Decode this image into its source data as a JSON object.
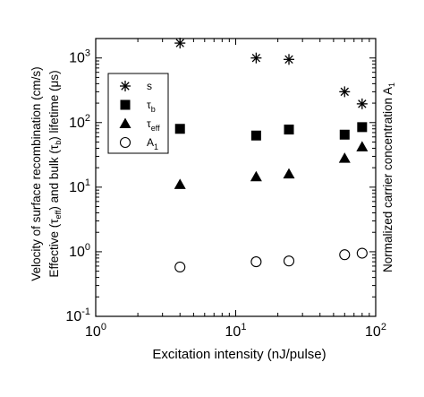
{
  "chart_data": {
    "type": "scatter",
    "xscale": "log",
    "yscale": "log",
    "xlim": [
      1,
      100
    ],
    "ylim": [
      0.1,
      2000
    ],
    "x_ticks": [
      {
        "value": 1,
        "base": "10",
        "exp": "0"
      },
      {
        "value": 10,
        "base": "10",
        "exp": "1"
      },
      {
        "value": 100,
        "base": "10",
        "exp": "2"
      }
    ],
    "y_ticks": [
      {
        "value": 0.1,
        "base": "10",
        "exp": "-1"
      },
      {
        "value": 1,
        "base": "10",
        "exp": "0"
      },
      {
        "value": 10,
        "base": "10",
        "exp": "1"
      },
      {
        "value": 100,
        "base": "10",
        "exp": "2"
      },
      {
        "value": 1000,
        "base": "10",
        "exp": "3"
      }
    ],
    "xlabel": "Excitation intensity   (nJ/pulse)",
    "ylabel_left": {
      "line1": "Velocity of surface recombination  (cm/s)",
      "line2_pre": "Effective  (τ",
      "line2_sub1": "eff",
      "line2_mid": ")  and  bulk  (τ",
      "line2_sub2": "b",
      "line2_post": ")  lifetime   (μs)"
    },
    "ylabel_right": {
      "text": "Normalized carrier concentration A",
      "sub": "1"
    },
    "grid": false,
    "legend_position": "upper-left",
    "series": [
      {
        "key": "s",
        "label": "s",
        "label_sub": "",
        "marker": "asterisk",
        "x": [
          4,
          14,
          24,
          60,
          80
        ],
        "y": [
          1700,
          1000,
          950,
          300,
          195
        ]
      },
      {
        "key": "tau_b",
        "label": "τ",
        "label_sub": "b",
        "marker": "square",
        "x": [
          4,
          14,
          24,
          60,
          80
        ],
        "y": [
          80,
          63,
          78,
          65,
          85
        ]
      },
      {
        "key": "tau_eff",
        "label": "τ",
        "label_sub": "eff",
        "marker": "triangle",
        "x": [
          4,
          14,
          24,
          60,
          80
        ],
        "y": [
          11,
          14.5,
          16,
          28,
          42
        ]
      },
      {
        "key": "A1",
        "label": "A",
        "label_sub": "1",
        "marker": "circle",
        "x": [
          4,
          14,
          24,
          60,
          80
        ],
        "y": [
          0.58,
          0.7,
          0.72,
          0.9,
          0.95
        ]
      }
    ]
  }
}
